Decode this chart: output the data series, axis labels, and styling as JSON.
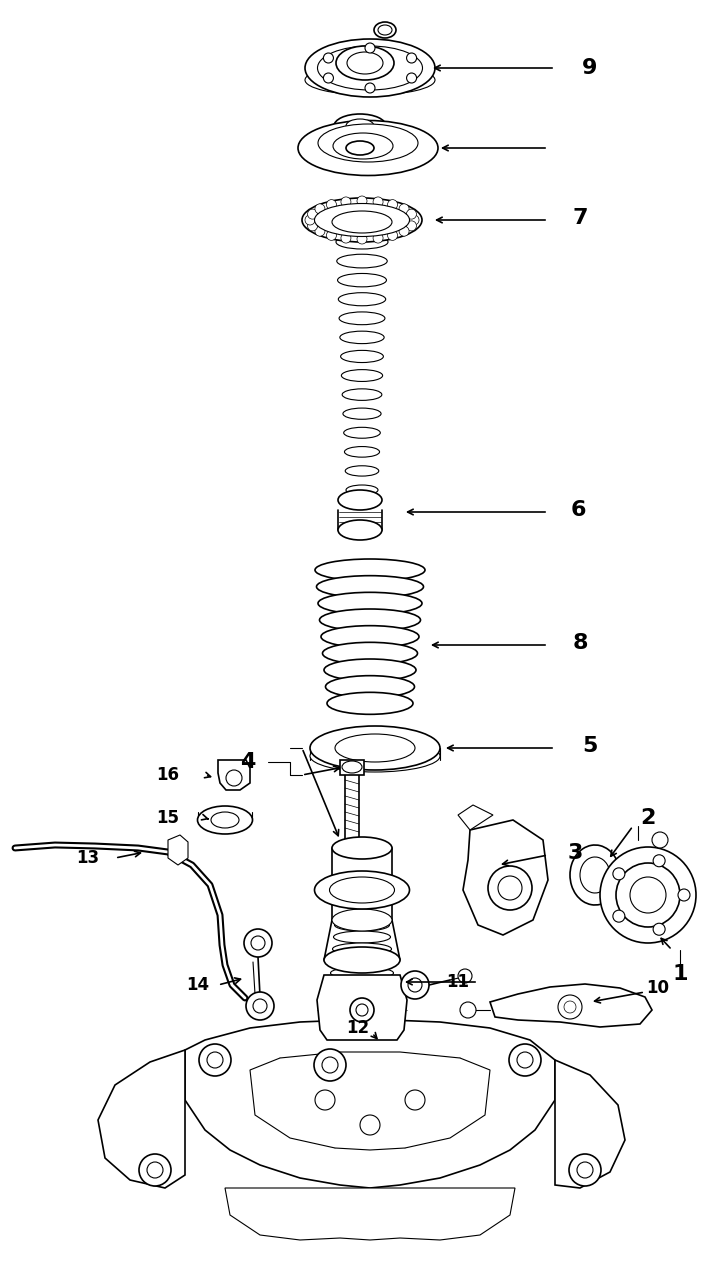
{
  "bg_color": "#ffffff",
  "line_color": "#000000",
  "fig_width": 7.2,
  "fig_height": 12.67,
  "dpi": 100
}
